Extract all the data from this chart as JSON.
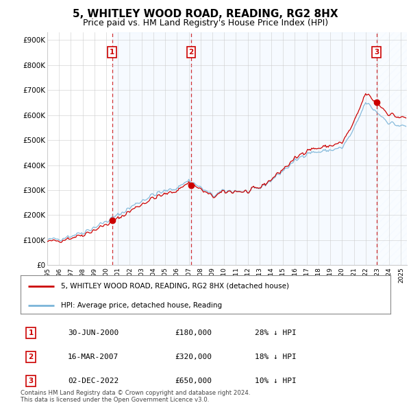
{
  "title": "5, WHITLEY WOOD ROAD, READING, RG2 8HX",
  "subtitle": "Price paid vs. HM Land Registry's House Price Index (HPI)",
  "title_fontsize": 11,
  "subtitle_fontsize": 9,
  "ytick_labels": [
    "£0",
    "£100K",
    "£200K",
    "£300K",
    "£400K",
    "£500K",
    "£600K",
    "£700K",
    "£800K",
    "£900K"
  ],
  "yticks": [
    0,
    100000,
    200000,
    300000,
    400000,
    500000,
    600000,
    700000,
    800000,
    900000
  ],
  "ylim": [
    0,
    930000
  ],
  "hpi_color": "#7ab4d8",
  "price_color": "#cc0000",
  "shade_color": "#ddeeff",
  "grid_color": "#cccccc",
  "bg_color": "#ffffff",
  "sale_points": [
    {
      "date_num": 2000.5,
      "price": 180000,
      "label": "1"
    },
    {
      "date_num": 2007.21,
      "price": 320000,
      "label": "2"
    },
    {
      "date_num": 2022.92,
      "price": 650000,
      "label": "3"
    }
  ],
  "legend_entries": [
    "5, WHITLEY WOOD ROAD, READING, RG2 8HX (detached house)",
    "HPI: Average price, detached house, Reading"
  ],
  "table_data": [
    [
      "1",
      "30-JUN-2000",
      "£180,000",
      "28% ↓ HPI"
    ],
    [
      "2",
      "16-MAR-2007",
      "£320,000",
      "18% ↓ HPI"
    ],
    [
      "3",
      "02-DEC-2022",
      "£650,000",
      "10% ↓ HPI"
    ]
  ],
  "footer": "Contains HM Land Registry data © Crown copyright and database right 2024.\nThis data is licensed under the Open Government Licence v3.0.",
  "xmin": 1995.0,
  "xmax": 2025.5
}
